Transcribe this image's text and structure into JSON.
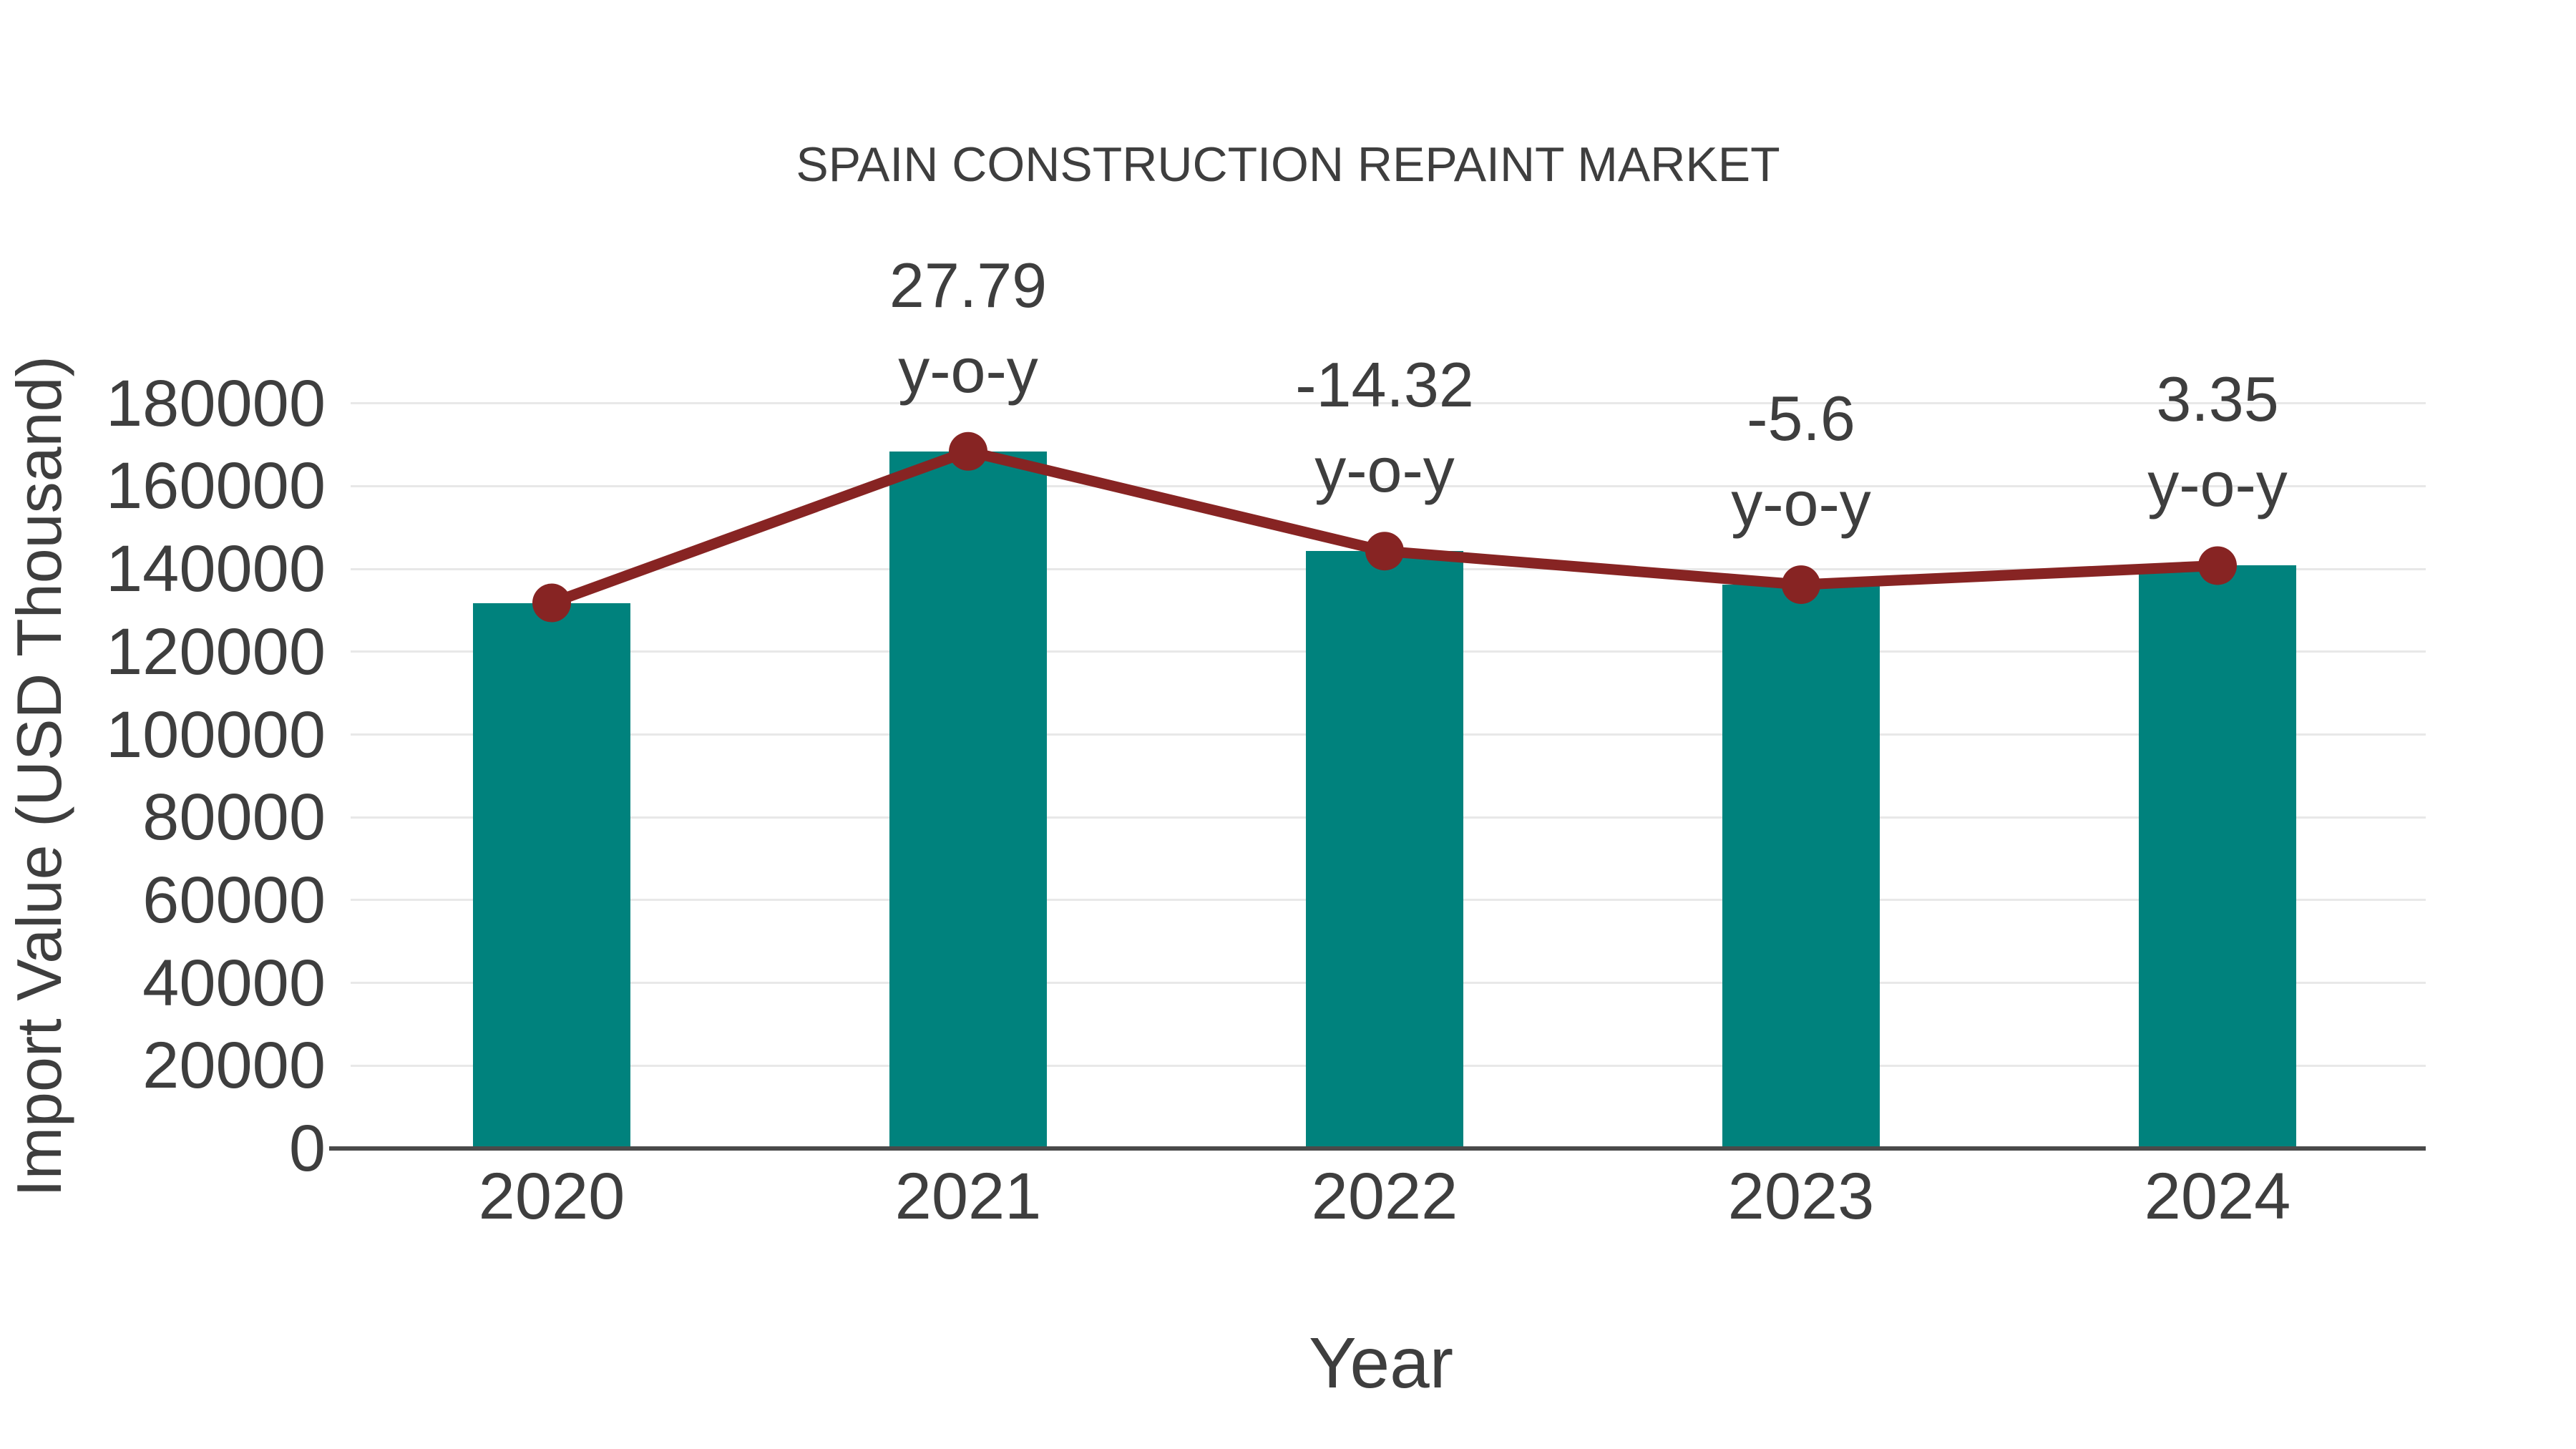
{
  "chart_data": {
    "type": "bar",
    "title": "SPAIN CONSTRUCTION REPAINT MARKET",
    "xlabel": "Year",
    "ylabel": "Import Value (USD Thousand)",
    "categories": [
      "2020",
      "2021",
      "2022",
      "2023",
      "2024"
    ],
    "series": [
      {
        "type": "bar",
        "values": [
          131800,
          168400,
          144300,
          136200,
          140800
        ]
      },
      {
        "type": "line",
        "values": [
          131800,
          168400,
          144300,
          136200,
          140800
        ]
      }
    ],
    "annotations": [
      {
        "category": "2021",
        "value": "27.79",
        "label": "y-o-y"
      },
      {
        "category": "2022",
        "value": "-14.32",
        "label": "y-o-y"
      },
      {
        "category": "2023",
        "value": "-5.6",
        "label": "y-o-y"
      },
      {
        "category": "2024",
        "value": "3.35",
        "label": "y-o-y"
      }
    ],
    "ylim": [
      0,
      180000
    ],
    "ytick_step": 20000,
    "yticks": [
      "0",
      "20000",
      "40000",
      "60000",
      "80000",
      "100000",
      "120000",
      "140000",
      "160000",
      "180000"
    ],
    "grid": true,
    "legend": false,
    "colors": {
      "bar": "#00827D",
      "line": "#872423",
      "text": "#3E3E3E",
      "grid": "#E8E8E8",
      "axis": "#4A4A4A",
      "background": "#FFFFFF"
    }
  }
}
